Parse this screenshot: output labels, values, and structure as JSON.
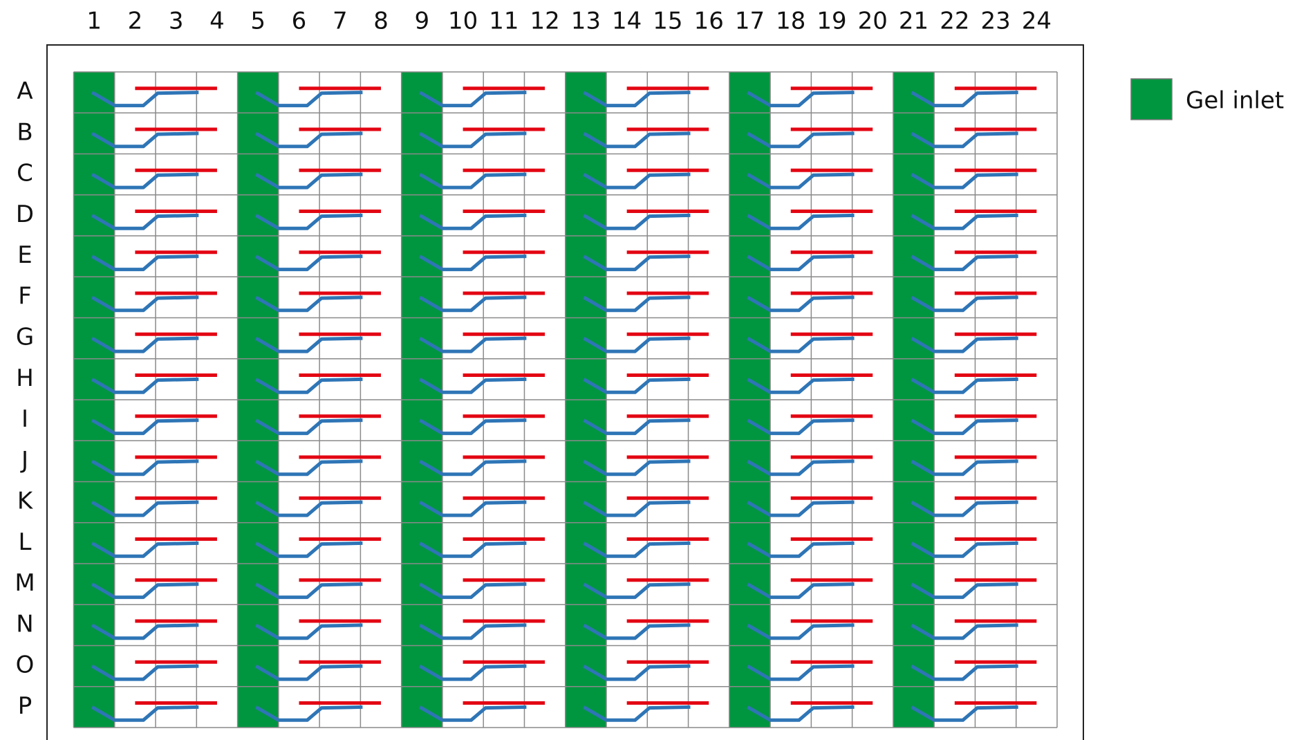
{
  "plate": {
    "columns": [
      1,
      2,
      3,
      4,
      5,
      6,
      7,
      8,
      9,
      10,
      11,
      12,
      13,
      14,
      15,
      16,
      17,
      18,
      19,
      20,
      21,
      22,
      23,
      24
    ],
    "rows": [
      "A",
      "B",
      "C",
      "D",
      "E",
      "F",
      "G",
      "H",
      "I",
      "J",
      "K",
      "L",
      "M",
      "N",
      "O",
      "P"
    ]
  },
  "legend": {
    "label": "Gel inlet"
  }
}
